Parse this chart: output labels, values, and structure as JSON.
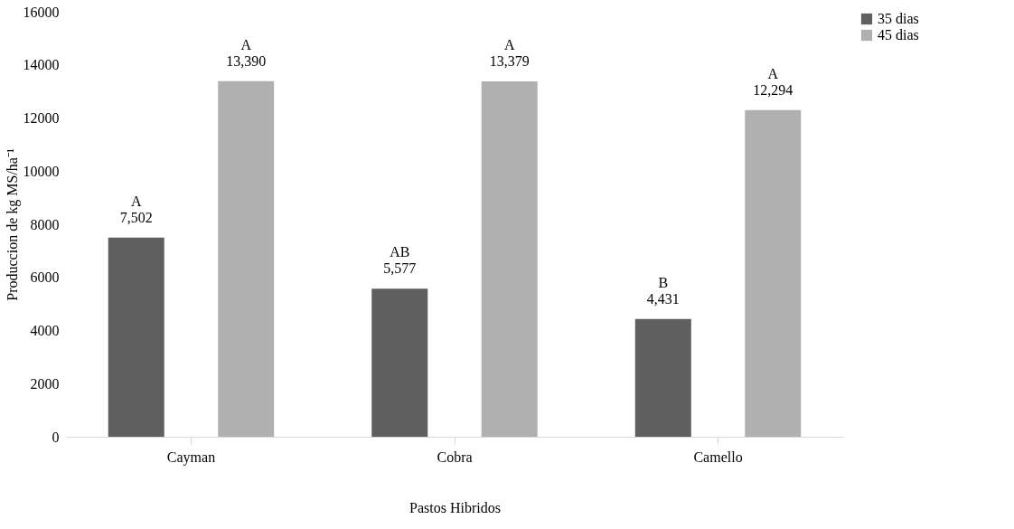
{
  "chart_data": {
    "type": "bar",
    "xlabel": "Pastos Hibridos",
    "ylabel": "Produccion de kg MS/ha⁻¹",
    "categories": [
      "Cayman",
      "Cobra",
      "Camello"
    ],
    "series": [
      {
        "name": "35 dias",
        "color": "#5f5f5f",
        "values": [
          7502,
          5577,
          4431
        ],
        "value_labels": [
          "A\n7,502",
          "AB\n5,577",
          "B\n4,431"
        ]
      },
      {
        "name": "45 dias",
        "color": "#b0b0b0",
        "values": [
          13390,
          13379,
          12294
        ],
        "value_labels": [
          "A\n13,390",
          "A\n13,379",
          "A\n12,294"
        ]
      }
    ],
    "ylim": [
      0,
      16000
    ],
    "yticks": [
      0,
      2000,
      4000,
      6000,
      8000,
      10000,
      12000,
      14000,
      16000
    ],
    "grid": false,
    "legend": "right"
  }
}
